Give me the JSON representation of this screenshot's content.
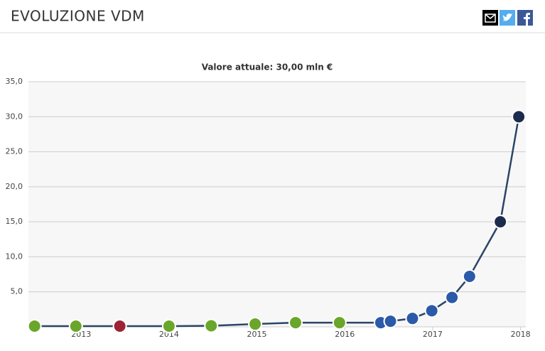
{
  "header": {
    "title": "EVOLUZIONE VDM"
  },
  "chart_data": {
    "type": "line",
    "title": "Valore attuale: 30,00 mln €",
    "x": [
      2012.47,
      2012.94,
      2013.44,
      2014.0,
      2014.48,
      2014.98,
      2015.44,
      2015.94,
      2016.41,
      2016.52,
      2016.77,
      2016.99,
      2017.22,
      2017.42,
      2017.77,
      2017.98
    ],
    "series": [
      {
        "color": "#2c4567",
        "values": [
          0.1,
          0.1,
          0.1,
          0.1,
          0.15,
          0.4,
          0.6,
          0.6,
          0.6,
          0.8,
          1.2,
          2.3,
          4.2,
          7.2,
          15,
          30
        ],
        "point_colors": [
          "#6aa629",
          "#6aa629",
          "#9b2335",
          "#6aa629",
          "#6aa629",
          "#6aa629",
          "#6aa629",
          "#6aa629",
          "#2b5aa8",
          "#2b5aa8",
          "#2b5aa8",
          "#2b5aa8",
          "#2b5aa8",
          "#2b5aa8",
          "#1d2c4c",
          "#1d2c4c"
        ]
      }
    ],
    "xlim": [
      2012.4,
      2018.06
    ],
    "xticks": [
      2013,
      2014,
      2015,
      2016,
      2017,
      2018
    ],
    "ylim": [
      0,
      35
    ],
    "yticks": [
      {
        "value": 5,
        "label": "5,0"
      },
      {
        "value": 10,
        "label": "10,0"
      },
      {
        "value": 15,
        "label": "15,0"
      },
      {
        "value": 20,
        "label": "20,0"
      },
      {
        "value": 25,
        "label": "25,0"
      },
      {
        "value": 30,
        "label": "30,0"
      },
      {
        "value": 35,
        "label": "35,0"
      }
    ],
    "grid": true
  }
}
